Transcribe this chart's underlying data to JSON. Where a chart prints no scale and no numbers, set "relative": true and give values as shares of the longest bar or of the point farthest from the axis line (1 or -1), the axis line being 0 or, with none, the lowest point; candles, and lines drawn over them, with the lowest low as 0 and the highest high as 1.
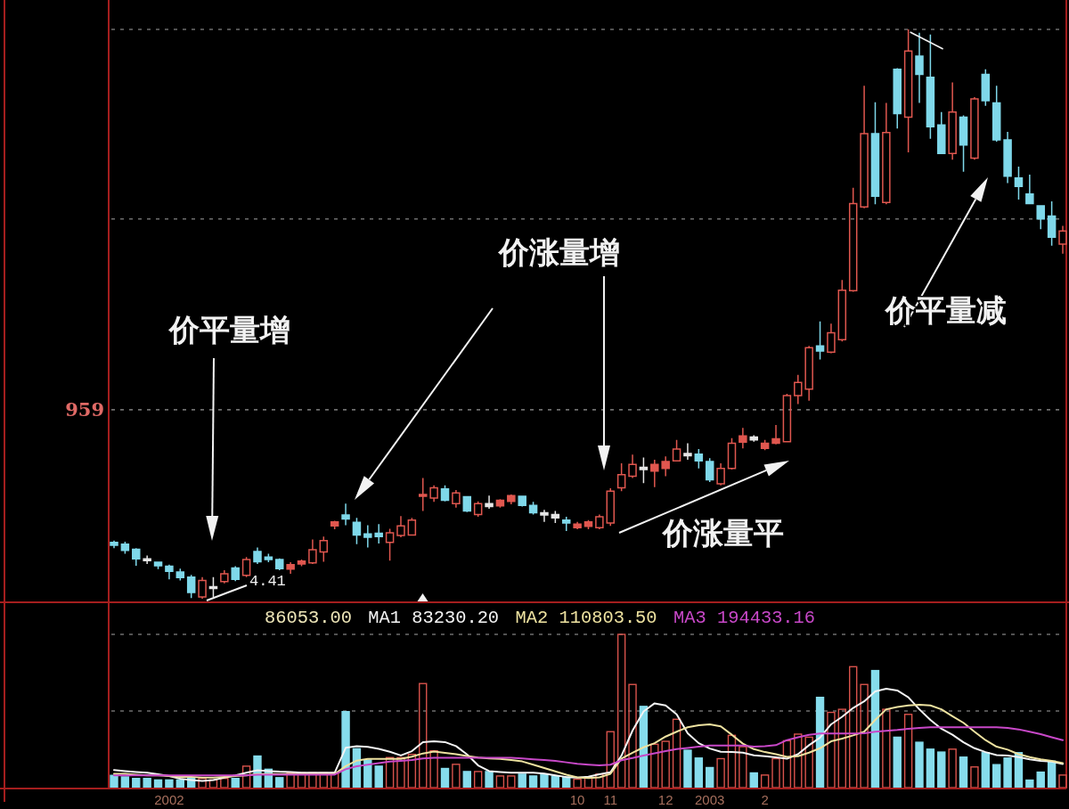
{
  "chart_data": [
    {
      "type": "candlestick",
      "relative": true,
      "tick_labels": false,
      "categories": [
        null,
        null,
        null,
        null,
        null,
        "2002",
        null,
        null,
        null,
        null,
        null,
        null,
        null,
        null,
        null,
        null,
        null,
        null,
        null,
        null,
        null,
        null,
        null,
        null,
        null,
        null,
        null,
        null,
        null,
        null,
        null,
        null,
        null,
        null,
        null,
        null,
        null,
        null,
        null,
        null,
        null,
        null,
        "10",
        null,
        null,
        "11",
        null,
        null,
        null,
        null,
        "12",
        null,
        null,
        null,
        "2003",
        null,
        null,
        null,
        null,
        "2",
        null,
        null,
        null,
        null,
        null,
        null,
        null,
        null,
        null,
        null,
        null,
        null,
        null,
        null,
        null,
        null,
        null,
        null,
        null,
        null,
        null,
        null,
        null,
        null,
        null,
        null,
        null
      ],
      "ohlc": [
        [
          0.099,
          0.102,
          0.089,
          0.094
        ],
        [
          0.096,
          0.1,
          0.079,
          0.085
        ],
        [
          0.087,
          0.089,
          0.058,
          0.07
        ],
        [
          0.07,
          0.076,
          0.061,
          0.067
        ],
        [
          0.064,
          0.065,
          0.052,
          0.058
        ],
        [
          0.057,
          0.06,
          0.034,
          0.048
        ],
        [
          0.047,
          0.053,
          0.032,
          0.037
        ],
        [
          0.038,
          0.042,
          0.001,
          0.011
        ],
        [
          0.003,
          0.038,
          0,
          0.032
        ],
        [
          0.018,
          0.038,
          0.003,
          0.021
        ],
        [
          0.03,
          0.05,
          0.027,
          0.044
        ],
        [
          0.054,
          0.057,
          0.031,
          0.034
        ],
        [
          0.041,
          0.073,
          0.038,
          0.069
        ],
        [
          0.083,
          0.09,
          0.061,
          0.065
        ],
        [
          0.073,
          0.079,
          0.064,
          0.069
        ],
        [
          0.069,
          0.071,
          0.05,
          0.053
        ],
        [
          0.052,
          0.064,
          0.044,
          0.06
        ],
        [
          0.061,
          0.069,
          0.057,
          0.066
        ],
        [
          0.063,
          0.104,
          0.061,
          0.086
        ],
        [
          0.082,
          0.109,
          0.065,
          0.102
        ],
        [
          0.128,
          0.137,
          0.122,
          0.135
        ],
        [
          0.147,
          0.167,
          0.129,
          0.14
        ],
        [
          0.134,
          0.142,
          0.096,
          0.112
        ],
        [
          0.114,
          0.129,
          0.09,
          0.108
        ],
        [
          0.115,
          0.131,
          0.097,
          0.109
        ],
        [
          0.099,
          0.123,
          0.067,
          0.116
        ],
        [
          0.111,
          0.145,
          0.108,
          0.128
        ],
        [
          0.112,
          0.142,
          0.111,
          0.138
        ],
        [
          0.18,
          0.212,
          0.154,
          0.183
        ],
        [
          0.177,
          0.199,
          0.17,
          0.195
        ],
        [
          0.193,
          0.199,
          0.171,
          0.173
        ],
        [
          0.167,
          0.191,
          0.16,
          0.186
        ],
        [
          0.179,
          0.18,
          0.152,
          0.154
        ],
        [
          0.148,
          0.171,
          0.144,
          0.167
        ],
        [
          0.167,
          0.181,
          0.158,
          0.162
        ],
        [
          0.163,
          0.175,
          0.16,
          0.173
        ],
        [
          0.171,
          0.183,
          0.166,
          0.181
        ],
        [
          0.18,
          0.181,
          0.162,
          0.164
        ],
        [
          0.164,
          0.17,
          0.148,
          0.151
        ],
        [
          0.151,
          0.156,
          0.135,
          0.147
        ],
        [
          0.148,
          0.154,
          0.133,
          0.142
        ],
        [
          0.138,
          0.144,
          0.119,
          0.133
        ],
        [
          0.125,
          0.135,
          0.122,
          0.131
        ],
        [
          0.127,
          0.138,
          0.122,
          0.135
        ],
        [
          0.125,
          0.148,
          0.122,
          0.144
        ],
        [
          0.133,
          0.194,
          0.128,
          0.189
        ],
        [
          0.195,
          0.238,
          0.189,
          0.218
        ],
        [
          0.215,
          0.253,
          0.212,
          0.236
        ],
        [
          0.231,
          0.248,
          0.203,
          0.227
        ],
        [
          0.224,
          0.244,
          0.196,
          0.236
        ],
        [
          0.229,
          0.25,
          0.215,
          0.241
        ],
        [
          0.242,
          0.279,
          0.241,
          0.263
        ],
        [
          0.255,
          0.273,
          0.244,
          0.251
        ],
        [
          0.254,
          0.263,
          0.229,
          0.242
        ],
        [
          0.241,
          0.247,
          0.205,
          0.209
        ],
        [
          0.202,
          0.238,
          0.199,
          0.229
        ],
        [
          0.229,
          0.282,
          0.227,
          0.273
        ],
        [
          0.275,
          0.3,
          0.264,
          0.286
        ],
        [
          0.284,
          0.287,
          0.276,
          0.279
        ],
        [
          0.264,
          0.279,
          0.261,
          0.273
        ],
        [
          0.273,
          0.305,
          0.271,
          0.281
        ],
        [
          0.276,
          0.36,
          0.275,
          0.357
        ],
        [
          0.357,
          0.393,
          0.342,
          0.38
        ],
        [
          0.368,
          0.444,
          0.348,
          0.441
        ],
        [
          0.444,
          0.487,
          0.42,
          0.435
        ],
        [
          0.433,
          0.483,
          0.431,
          0.467
        ],
        [
          0.455,
          0.56,
          0.452,
          0.542
        ],
        [
          0.541,
          0.722,
          0.539,
          0.694
        ],
        [
          0.688,
          0.901,
          0.686,
          0.817
        ],
        [
          0.817,
          0.872,
          0.693,
          0.707
        ],
        [
          0.696,
          0.871,
          0.693,
          0.819
        ],
        [
          0.93,
          0.932,
          0.826,
          0.852
        ],
        [
          0.846,
          1,
          0.784,
          0.962
        ],
        [
          0.953,
          0.994,
          0.871,
          0.921
        ],
        [
          0.916,
          0.991,
          0.808,
          0.829
        ],
        [
          0.832,
          0.855,
          0.781,
          0.782
        ],
        [
          0.782,
          0.907,
          0.771,
          0.855
        ],
        [
          0.846,
          0.849,
          0.75,
          0.797
        ],
        [
          0.774,
          0.881,
          0.771,
          0.878
        ],
        [
          0.921,
          0.93,
          0.866,
          0.875
        ],
        [
          0.871,
          0.901,
          0.803,
          0.806
        ],
        [
          0.806,
          0.82,
          0.73,
          0.742
        ],
        [
          0.739,
          0.759,
          0.701,
          0.724
        ],
        [
          0.711,
          0.745,
          0.693,
          0.694
        ],
        [
          0.69,
          0.69,
          0.649,
          0.667
        ],
        [
          0.672,
          0.698,
          0.62,
          0.635
        ],
        [
          0.623,
          0.655,
          0.606,
          0.646
        ]
      ],
      "colors": [
        "#7fd8ea",
        "#7fd8ea",
        "#7fd8ea",
        "#e6e6e6",
        "#7fd8ea",
        "#7fd8ea",
        "#7fd8ea",
        "#7fd8ea",
        "#e0574f",
        "#e6e6e6",
        "#e0574f",
        "#7fd8ea",
        "#e0574f",
        "#7fd8ea",
        "#7fd8ea",
        "#7fd8ea",
        "#e0574f",
        "#e0574f",
        "#e0574f",
        "#e0574f",
        "#e0574f",
        "#7fd8ea",
        "#7fd8ea",
        "#7fd8ea",
        "#7fd8ea",
        "#e0574f",
        "#e0574f",
        "#e0574f",
        "#e0574f",
        "#e0574f",
        "#7fd8ea",
        "#e0574f",
        "#7fd8ea",
        "#e0574f",
        "#e6e6e6",
        "#e0574f",
        "#e0574f",
        "#7fd8ea",
        "#7fd8ea",
        "#e6e6e6",
        "#e6e6e6",
        "#7fd8ea",
        "#e0574f",
        "#e0574f",
        "#e0574f",
        "#e0574f",
        "#e0574f",
        "#e0574f",
        "#e6e6e6",
        "#e0574f",
        "#e0574f",
        "#e0574f",
        "#e6e6e6",
        "#7fd8ea",
        "#7fd8ea",
        "#e0574f",
        "#e0574f",
        "#e0574f",
        "#e6e6e6",
        "#e0574f",
        "#e0574f",
        "#e0574f",
        "#e0574f",
        "#e0574f",
        "#7fd8ea",
        "#e0574f",
        "#e0574f",
        "#e0574f",
        "#e0574f",
        "#7fd8ea",
        "#e0574f",
        "#7fd8ea",
        "#e0574f",
        "#7fd8ea",
        "#7fd8ea",
        "#7fd8ea",
        "#e0574f",
        "#7fd8ea",
        "#e0574f",
        "#7fd8ea",
        "#7fd8ea",
        "#7fd8ea",
        "#7fd8ea",
        "#7fd8ea",
        "#7fd8ea",
        "#7fd8ea",
        "#e0574f"
      ],
      "ref_lines": [
        {
          "axis": "y",
          "value": 1,
          "color": "#6e6e6e",
          "line_style": "dashed"
        },
        {
          "axis": "y",
          "value": 0.667,
          "color": "#6e6e6e",
          "line_style": "dashed"
        },
        {
          "axis": "y",
          "value": 0.332,
          "color": "#6e6e6e",
          "line_style": "dashed"
        }
      ],
      "annotations": [
        "价平量增",
        "价涨量增",
        "价涨量平",
        "价平量减",
        "4.41",
        "959"
      ]
    },
    {
      "type": "bar",
      "relative": true,
      "tick_labels": "x",
      "legend": "top left",
      "categories": [
        null,
        null,
        null,
        null,
        null,
        "2002",
        null,
        null,
        null,
        null,
        null,
        null,
        null,
        null,
        null,
        null,
        null,
        null,
        null,
        null,
        null,
        null,
        null,
        null,
        null,
        null,
        null,
        null,
        null,
        null,
        null,
        null,
        null,
        null,
        null,
        null,
        null,
        null,
        null,
        null,
        null,
        null,
        "10",
        null,
        null,
        "11",
        null,
        null,
        null,
        null,
        "12",
        null,
        null,
        null,
        "2003",
        null,
        null,
        null,
        null,
        "2",
        null,
        null,
        null,
        null,
        null,
        null,
        null,
        null,
        null,
        null,
        null,
        null,
        null,
        null,
        null,
        null,
        null,
        null,
        null,
        null,
        null,
        null,
        null,
        null,
        null,
        null,
        null
      ],
      "annotations": [
        "86053.00"
      ],
      "ref_lines": [
        {
          "axis": "y",
          "value": 0.5,
          "color": "#6e6e6e",
          "line_style": "dashed"
        },
        {
          "axis": "y",
          "value": 1,
          "color": "#6e6e6e",
          "line_style": "dashed"
        }
      ],
      "series": [
        {
          "type": "bar",
          "values": [
            0.08,
            0.07,
            0.06,
            0.06,
            0.05,
            0.05,
            0.05,
            0.06,
            0.06,
            0.05,
            0.06,
            0.06,
            0.14,
            0.206,
            0.12,
            0.065,
            0.097,
            0.097,
            0.097,
            0.097,
            0.097,
            0.496,
            0.254,
            0.18,
            0.14,
            0.196,
            0.196,
            0.217,
            0.679,
            0.24,
            0.125,
            0.152,
            0.105,
            0.105,
            0.105,
            0.076,
            0.076,
            0.088,
            0.076,
            0.088,
            0.076,
            0.07,
            0.055,
            0.065,
            0.088,
            0.365,
            1,
            0.673,
            0.53,
            0.283,
            0.302,
            0.446,
            0.244,
            0.193,
            0.131,
            0.189,
            0.341,
            0.267,
            0.096,
            0.082,
            0.189,
            0.306,
            0.349,
            0.329,
            0.589,
            0.491,
            0.511,
            0.789,
            0.673,
            0.764,
            0.511,
            0.329,
            0.478,
            0.296,
            0.251,
            0.232,
            0.251,
            0.199,
            0.135,
            0.228,
            0.15,
            0.193,
            0.228,
            0.049,
            0.101,
            0.173,
            0.082
          ],
          "colors": [
            "#86dcec",
            "#86dcec",
            "#86dcec",
            "#86dcec",
            "#86dcec",
            "#86dcec",
            "#86dcec",
            "#86dcec",
            "#d9534c",
            "#d9534c",
            "#d9534c",
            "#86dcec",
            "#d9534c",
            "#86dcec",
            "#86dcec",
            "#86dcec",
            "#d9534c",
            "#d9534c",
            "#d9534c",
            "#d9534c",
            "#d9534c",
            "#86dcec",
            "#86dcec",
            "#86dcec",
            "#86dcec",
            "#d9534c",
            "#d9534c",
            "#d9534c",
            "#d9534c",
            "#d9534c",
            "#86dcec",
            "#d9534c",
            "#86dcec",
            "#d9534c",
            "#86dcec",
            "#d9534c",
            "#d9534c",
            "#86dcec",
            "#86dcec",
            "#86dcec",
            "#86dcec",
            "#86dcec",
            "#d9534c",
            "#d9534c",
            "#d9534c",
            "#d9534c",
            "#d9534c",
            "#d9534c",
            "#86dcec",
            "#d9534c",
            "#d9534c",
            "#d9534c",
            "#86dcec",
            "#86dcec",
            "#86dcec",
            "#d9534c",
            "#d9534c",
            "#d9534c",
            "#86dcec",
            "#d9534c",
            "#d9534c",
            "#d9534c",
            "#d9534c",
            "#d9534c",
            "#86dcec",
            "#d9534c",
            "#d9534c",
            "#d9534c",
            "#d9534c",
            "#86dcec",
            "#d9534c",
            "#86dcec",
            "#d9534c",
            "#86dcec",
            "#86dcec",
            "#86dcec",
            "#d9534c",
            "#86dcec",
            "#d9534c",
            "#86dcec",
            "#86dcec",
            "#86dcec",
            "#86dcec",
            "#86dcec",
            "#86dcec",
            "#86dcec",
            "#d9534c"
          ]
        },
        {
          "type": "line",
          "name": "MA1 83230.20",
          "color": "#f4f4f4",
          "values": [
            0.115,
            0.108,
            0.102,
            0.097,
            0.087,
            0.076,
            0.058,
            0.05,
            0.043,
            0.05,
            0.065,
            0.08,
            0.097,
            0.113,
            0.108,
            0.104,
            0.102,
            0.097,
            0.097,
            0.097,
            0.097,
            0.26,
            0.271,
            0.266,
            0.253,
            0.234,
            0.21,
            0.238,
            0.297,
            0.303,
            0.297,
            0.271,
            0.217,
            0.145,
            0.108,
            0.102,
            0.097,
            0.097,
            0.097,
            0.091,
            0.08,
            0.069,
            0.065,
            0.071,
            0.087,
            0.1,
            0.209,
            0.372,
            0.497,
            0.55,
            0.536,
            0.478,
            0.355,
            0.29,
            0.255,
            0.234,
            0.232,
            0.228,
            0.211,
            0.205,
            0.197,
            0.189,
            0.218,
            0.277,
            0.326,
            0.413,
            0.462,
            0.52,
            0.563,
            0.628,
            0.645,
            0.634,
            0.589,
            0.511,
            0.442,
            0.384,
            0.345,
            0.296,
            0.257,
            0.232,
            0.212,
            0.209,
            0.199,
            0.185,
            0.175,
            0.17,
            0.154
          ]
        },
        {
          "type": "line",
          "name": "MA2 110803.50",
          "color": "#eee2a0",
          "values": [
            0.09,
            0.09,
            0.085,
            0.08,
            0.08,
            0.075,
            0.07,
            0.07,
            0.065,
            0.065,
            0.07,
            0.075,
            0.08,
            0.088,
            0.088,
            0.088,
            0.088,
            0.088,
            0.088,
            0.088,
            0.088,
            0.14,
            0.176,
            0.187,
            0.187,
            0.187,
            0.187,
            0.202,
            0.223,
            0.236,
            0.227,
            0.218,
            0.207,
            0.196,
            0.19,
            0.187,
            0.18,
            0.171,
            0.15,
            0.128,
            0.106,
            0.084,
            0.067,
            0.063,
            0.067,
            0.09,
            0.189,
            0.228,
            0.263,
            0.29,
            0.333,
            0.365,
            0.394,
            0.407,
            0.413,
            0.4,
            0.345,
            0.287,
            0.251,
            0.232,
            0.218,
            0.201,
            0.205,
            0.228,
            0.257,
            0.302,
            0.32,
            0.341,
            0.365,
            0.442,
            0.511,
            0.526,
            0.536,
            0.54,
            0.536,
            0.511,
            0.466,
            0.423,
            0.365,
            0.31,
            0.267,
            0.248,
            0.218,
            0.199,
            0.185,
            0.175,
            0.16
          ]
        },
        {
          "type": "line",
          "name": "MA3 194433.16",
          "color": "#c848c8",
          "values": [
            0.08,
            0.08,
            0.08,
            0.08,
            0.08,
            0.08,
            0.08,
            0.08,
            0.08,
            0.08,
            0.08,
            0.08,
            0.08,
            0.085,
            0.085,
            0.085,
            0.085,
            0.085,
            0.085,
            0.085,
            0.085,
            0.12,
            0.14,
            0.15,
            0.16,
            0.17,
            0.175,
            0.18,
            0.19,
            0.195,
            0.195,
            0.195,
            0.195,
            0.195,
            0.195,
            0.195,
            0.195,
            0.19,
            0.185,
            0.18,
            0.175,
            0.165,
            0.155,
            0.15,
            0.145,
            0.15,
            0.179,
            0.193,
            0.209,
            0.224,
            0.238,
            0.251,
            0.259,
            0.267,
            0.275,
            0.275,
            0.275,
            0.275,
            0.267,
            0.271,
            0.277,
            0.31,
            0.329,
            0.345,
            0.353,
            0.353,
            0.353,
            0.353,
            0.355,
            0.365,
            0.37,
            0.376,
            0.384,
            0.39,
            0.394,
            0.394,
            0.394,
            0.394,
            0.394,
            0.394,
            0.394,
            0.39,
            0.38,
            0.365,
            0.349,
            0.329,
            0.31
          ]
        }
      ]
    }
  ]
}
